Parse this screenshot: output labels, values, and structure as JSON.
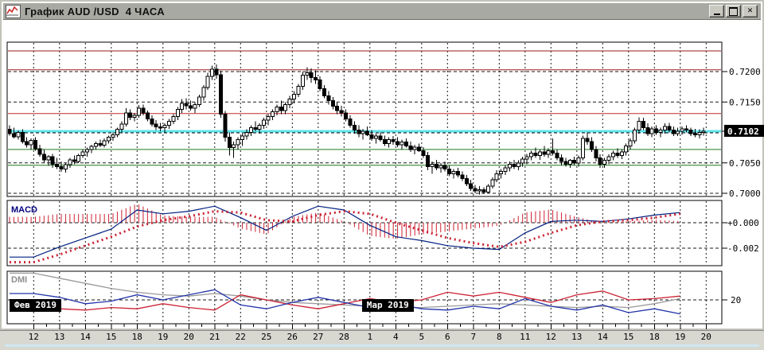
{
  "window": {
    "title": "График AUD /USD  4 ЧАСА",
    "controls": {
      "minimize_glyph": "_",
      "maximize_glyph": "□",
      "close_glyph": "✕"
    }
  },
  "chart_data": {
    "type": "candlestick-with-indicators",
    "symbol": "AUD/USD",
    "timeframe": "4 часа",
    "price_unit": "value/10000",
    "x_labels": [
      "12",
      "13",
      "14",
      "15",
      "18",
      "19",
      "20",
      "21",
      "22",
      "25",
      "26",
      "27",
      "28",
      "1",
      "4",
      "5",
      "6",
      "7",
      "8",
      "11",
      "12",
      "13",
      "14",
      "15",
      "18",
      "19",
      "20"
    ],
    "month_badges": [
      {
        "label": "Фев 2019",
        "day_index": 0
      },
      {
        "label": "Мар 2019",
        "day_index": 13
      }
    ],
    "price_axis": {
      "ticks": [
        {
          "pips": 7200,
          "label": "0.7200"
        },
        {
          "pips": 7150,
          "label": "0.7150"
        },
        {
          "pips": 7050,
          "label": "0.7050"
        },
        {
          "pips": 7000,
          "label": "0.7000"
        }
      ],
      "grid_pips": [
        7200,
        7150,
        7102,
        7050,
        7000
      ],
      "current_price_label": "0.7102",
      "current_price_pips": 7102
    },
    "levels": [
      {
        "pips": 7234,
        "color": "#9b1d1d",
        "width": 1,
        "role": "resistance"
      },
      {
        "pips": 7203,
        "color": "#9b1d1d",
        "width": 1,
        "role": "resistance"
      },
      {
        "pips": 7131,
        "color": "#c22a2a",
        "width": 1,
        "role": "resistance"
      },
      {
        "pips": 7102,
        "color": "#5fe3ec",
        "width": 3,
        "role": "current-price"
      },
      {
        "pips": 7072,
        "color": "#1c7a1c",
        "width": 1,
        "role": "support"
      },
      {
        "pips": 7046,
        "color": "#1c7a1c",
        "width": 1,
        "role": "support"
      }
    ],
    "candles": [
      [
        7105,
        7112,
        7095,
        7098
      ],
      [
        7098,
        7108,
        7090,
        7093
      ],
      [
        7093,
        7103,
        7088,
        7100
      ],
      [
        7100,
        7105,
        7082,
        7085
      ],
      [
        7085,
        7092,
        7075,
        7080
      ],
      [
        7080,
        7090,
        7072,
        7087
      ],
      [
        7087,
        7092,
        7070,
        7073
      ],
      [
        7073,
        7080,
        7060,
        7064
      ],
      [
        7064,
        7072,
        7050,
        7055
      ],
      [
        7055,
        7063,
        7045,
        7060
      ],
      [
        7060,
        7065,
        7042,
        7048
      ],
      [
        7048,
        7058,
        7040,
        7044
      ],
      [
        7044,
        7052,
        7035,
        7040
      ],
      [
        7040,
        7050,
        7034,
        7047
      ],
      [
        7047,
        7058,
        7042,
        7055
      ],
      [
        7055,
        7062,
        7048,
        7052
      ],
      [
        7052,
        7065,
        7050,
        7062
      ],
      [
        7062,
        7072,
        7058,
        7068
      ],
      [
        7068,
        7075,
        7060,
        7072
      ],
      [
        7072,
        7080,
        7066,
        7077
      ],
      [
        7077,
        7085,
        7072,
        7082
      ],
      [
        7082,
        7088,
        7076,
        7079
      ],
      [
        7079,
        7090,
        7075,
        7086
      ],
      [
        7086,
        7095,
        7082,
        7092
      ],
      [
        7092,
        7100,
        7086,
        7096
      ],
      [
        7096,
        7108,
        7092,
        7105
      ],
      [
        7105,
        7118,
        7100,
        7114
      ],
      [
        7114,
        7140,
        7110,
        7132
      ],
      [
        7132,
        7138,
        7120,
        7125
      ],
      [
        7125,
        7132,
        7118,
        7128
      ],
      [
        7128,
        7145,
        7124,
        7140
      ],
      [
        7140,
        7146,
        7128,
        7132
      ],
      [
        7132,
        7136,
        7118,
        7122
      ],
      [
        7122,
        7128,
        7110,
        7114
      ],
      [
        7114,
        7120,
        7104,
        7109
      ],
      [
        7109,
        7116,
        7102,
        7108
      ],
      [
        7108,
        7115,
        7100,
        7112
      ],
      [
        7112,
        7122,
        7106,
        7118
      ],
      [
        7118,
        7130,
        7114,
        7126
      ],
      [
        7126,
        7142,
        7120,
        7138
      ],
      [
        7138,
        7155,
        7132,
        7148
      ],
      [
        7148,
        7156,
        7138,
        7144
      ],
      [
        7144,
        7152,
        7136,
        7140
      ],
      [
        7140,
        7150,
        7132,
        7146
      ],
      [
        7146,
        7162,
        7142,
        7158
      ],
      [
        7158,
        7178,
        7152,
        7174
      ],
      [
        7174,
        7198,
        7170,
        7192
      ],
      [
        7192,
        7210,
        7186,
        7204
      ],
      [
        7204,
        7212,
        7188,
        7195
      ],
      [
        7195,
        7201,
        7124,
        7130
      ],
      [
        7130,
        7135,
        7085,
        7092
      ],
      [
        7092,
        7100,
        7062,
        7075
      ],
      [
        7075,
        7085,
        7058,
        7080
      ],
      [
        7080,
        7092,
        7072,
        7088
      ],
      [
        7088,
        7098,
        7078,
        7094
      ],
      [
        7094,
        7105,
        7088,
        7100
      ],
      [
        7100,
        7112,
        7094,
        7108
      ],
      [
        7108,
        7118,
        7102,
        7105
      ],
      [
        7105,
        7115,
        7098,
        7112
      ],
      [
        7112,
        7124,
        7106,
        7120
      ],
      [
        7120,
        7130,
        7112,
        7126
      ],
      [
        7126,
        7138,
        7120,
        7134
      ],
      [
        7134,
        7146,
        7128,
        7142
      ],
      [
        7142,
        7152,
        7130,
        7136
      ],
      [
        7136,
        7150,
        7130,
        7146
      ],
      [
        7146,
        7160,
        7140,
        7155
      ],
      [
        7155,
        7168,
        7148,
        7163
      ],
      [
        7163,
        7180,
        7158,
        7176
      ],
      [
        7176,
        7200,
        7170,
        7194
      ],
      [
        7194,
        7207,
        7186,
        7198
      ],
      [
        7198,
        7205,
        7182,
        7190
      ],
      [
        7190,
        7202,
        7180,
        7186
      ],
      [
        7186,
        7192,
        7168,
        7172
      ],
      [
        7172,
        7178,
        7156,
        7160
      ],
      [
        7160,
        7168,
        7146,
        7152
      ],
      [
        7152,
        7158,
        7138,
        7143
      ],
      [
        7143,
        7150,
        7130,
        7136
      ],
      [
        7136,
        7144,
        7126,
        7132
      ],
      [
        7132,
        7138,
        7118,
        7122
      ],
      [
        7122,
        7128,
        7108,
        7112
      ],
      [
        7112,
        7118,
        7098,
        7104
      ],
      [
        7104,
        7112,
        7092,
        7098
      ],
      [
        7098,
        7106,
        7088,
        7102
      ],
      [
        7102,
        7110,
        7094,
        7096
      ],
      [
        7096,
        7104,
        7086,
        7090
      ],
      [
        7090,
        7098,
        7082,
        7094
      ],
      [
        7094,
        7100,
        7085,
        7088
      ],
      [
        7088,
        7095,
        7078,
        7082
      ],
      [
        7082,
        7092,
        7075,
        7088
      ],
      [
        7088,
        7094,
        7080,
        7085
      ],
      [
        7085,
        7092,
        7076,
        7080
      ],
      [
        7080,
        7088,
        7072,
        7084
      ],
      [
        7084,
        7090,
        7075,
        7078
      ],
      [
        7078,
        7085,
        7068,
        7072
      ],
      [
        7072,
        7080,
        7064,
        7076
      ],
      [
        7076,
        7082,
        7068,
        7070
      ],
      [
        7070,
        7076,
        7058,
        7062
      ],
      [
        7062,
        7068,
        7038,
        7044
      ],
      [
        7044,
        7052,
        7032,
        7048
      ],
      [
        7048,
        7055,
        7038,
        7042
      ],
      [
        7042,
        7050,
        7034,
        7046
      ],
      [
        7046,
        7052,
        7036,
        7040
      ],
      [
        7040,
        7046,
        7028,
        7032
      ],
      [
        7032,
        7040,
        7024,
        7036
      ],
      [
        7036,
        7042,
        7026,
        7030
      ],
      [
        7030,
        7036,
        7020,
        7024
      ],
      [
        7024,
        7030,
        7012,
        7016
      ],
      [
        7016,
        7022,
        7004,
        7008
      ],
      [
        7008,
        7014,
        7000,
        7004
      ],
      [
        7004,
        7012,
        6998,
        7006
      ],
      [
        7006,
        7010,
        6999,
        7002
      ],
      [
        7002,
        7015,
        7000,
        7012
      ],
      [
        7012,
        7026,
        7008,
        7022
      ],
      [
        7022,
        7038,
        7018,
        7032
      ],
      [
        7032,
        7040,
        7024,
        7036
      ],
      [
        7036,
        7046,
        7030,
        7042
      ],
      [
        7042,
        7052,
        7036,
        7048
      ],
      [
        7048,
        7055,
        7040,
        7044
      ],
      [
        7044,
        7054,
        7038,
        7050
      ],
      [
        7050,
        7060,
        7044,
        7056
      ],
      [
        7056,
        7065,
        7048,
        7060
      ],
      [
        7060,
        7070,
        7054,
        7066
      ],
      [
        7066,
        7075,
        7058,
        7062
      ],
      [
        7062,
        7072,
        7055,
        7068
      ],
      [
        7068,
        7078,
        7060,
        7064
      ],
      [
        7064,
        7074,
        7058,
        7070
      ],
      [
        7070,
        7090,
        7062,
        7066
      ],
      [
        7066,
        7072,
        7054,
        7058
      ],
      [
        7058,
        7064,
        7046,
        7052
      ],
      [
        7052,
        7058,
        7044,
        7048
      ],
      [
        7048,
        7056,
        7042,
        7054
      ],
      [
        7054,
        7060,
        7046,
        7050
      ],
      [
        7050,
        7062,
        7044,
        7058
      ],
      [
        7058,
        7095,
        7054,
        7090
      ],
      [
        7090,
        7100,
        7080,
        7085
      ],
      [
        7085,
        7092,
        7068,
        7072
      ],
      [
        7072,
        7078,
        7052,
        7058
      ],
      [
        7058,
        7064,
        7042,
        7048
      ],
      [
        7048,
        7058,
        7042,
        7054
      ],
      [
        7054,
        7064,
        7048,
        7060
      ],
      [
        7060,
        7070,
        7054,
        7066
      ],
      [
        7066,
        7074,
        7058,
        7062
      ],
      [
        7062,
        7072,
        7056,
        7068
      ],
      [
        7068,
        7082,
        7062,
        7078
      ],
      [
        7078,
        7090,
        7072,
        7086
      ],
      [
        7086,
        7108,
        7082,
        7104
      ],
      [
        7104,
        7125,
        7098,
        7118
      ],
      [
        7118,
        7124,
        7104,
        7108
      ],
      [
        7108,
        7115,
        7094,
        7098
      ],
      [
        7098,
        7110,
        7092,
        7106
      ],
      [
        7106,
        7112,
        7096,
        7100
      ],
      [
        7100,
        7108,
        7092,
        7104
      ],
      [
        7104,
        7115,
        7098,
        7110
      ],
      [
        7110,
        7116,
        7100,
        7104
      ],
      [
        7104,
        7110,
        7094,
        7098
      ],
      [
        7098,
        7108,
        7094,
        7102
      ],
      [
        7102,
        7110,
        7096,
        7106
      ],
      [
        7106,
        7112,
        7100,
        7104
      ],
      [
        7104,
        7108,
        7094,
        7098
      ],
      [
        7098,
        7106,
        7092,
        7096
      ],
      [
        7096,
        7105,
        7090,
        7100
      ],
      [
        7100,
        7108,
        7095,
        7102
      ]
    ],
    "macd": {
      "label": "MACD",
      "ticks": [
        {
          "value": 0.0,
          "label": "+0.000"
        },
        {
          "value": -0.002,
          "label": "-0.002"
        }
      ],
      "value_unit": "value*0.0001",
      "line": [
        -27,
        -19,
        -12,
        -5,
        10,
        7,
        9,
        13,
        4,
        -6,
        5,
        13,
        10,
        -2,
        -11,
        -14,
        -18,
        -20,
        -21,
        -8,
        1,
        2,
        1,
        3,
        6,
        8
      ],
      "signal": [
        -31,
        -25,
        -18,
        -11,
        -3,
        2,
        5,
        9,
        8,
        2,
        1,
        6,
        9,
        7,
        0,
        -6,
        -12,
        -16,
        -19,
        -15,
        -8,
        -2,
        1,
        2,
        4,
        7
      ],
      "colors": {
        "line": "#00207f",
        "signal": "#cc2233",
        "histogram": "#cc2233"
      }
    },
    "dmi": {
      "label": "DMI",
      "tick": {
        "value": 20,
        "label": "20"
      },
      "adx": [
        41,
        37,
        33,
        29,
        26,
        24,
        23,
        25,
        23,
        20,
        18,
        17,
        16,
        15,
        14,
        14,
        15,
        16,
        17,
        16,
        15,
        14,
        15,
        14,
        17,
        21
      ],
      "plus_di": [
        25,
        22,
        17,
        19,
        24,
        20,
        24,
        28,
        16,
        13,
        18,
        22,
        18,
        14,
        17,
        13,
        12,
        15,
        13,
        21,
        15,
        12,
        16,
        10,
        13,
        9
      ],
      "minus_di": [
        15,
        13,
        12,
        14,
        13,
        17,
        14,
        12,
        24,
        20,
        16,
        13,
        17,
        21,
        18,
        20,
        26,
        23,
        26,
        22,
        18,
        24,
        27,
        20,
        21,
        23
      ],
      "colors": {
        "adx": "#9a9a9a",
        "plus_di": "#2233aa",
        "minus_di": "#cc2233"
      }
    }
  }
}
